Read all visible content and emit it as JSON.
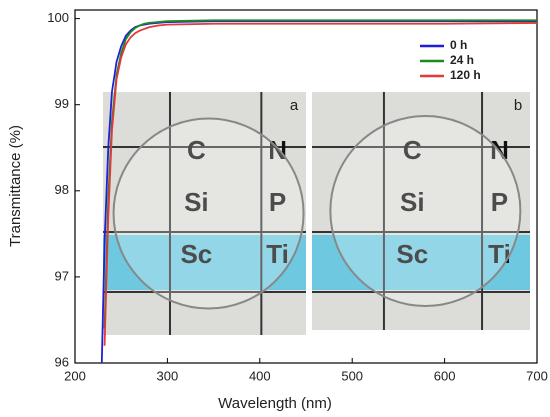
{
  "chart_data": {
    "type": "line",
    "xlabel": "Wavelength (nm)",
    "ylabel": "Transmittance (%)",
    "x": [
      229,
      232,
      236,
      240,
      245,
      250,
      255,
      260,
      265,
      270,
      275,
      280,
      290,
      300,
      350,
      400,
      500,
      600,
      700
    ],
    "series": [
      {
        "name": "0 h",
        "color": "#1f1fd6",
        "values": [
          96,
          97.4,
          98.5,
          99.15,
          99.5,
          99.68,
          99.8,
          99.86,
          99.9,
          99.92,
          99.93,
          99.94,
          99.95,
          99.96,
          99.97,
          99.97,
          99.97,
          99.97,
          99.97
        ]
      },
      {
        "name": "24 h",
        "color": "#1e8a1e",
        "values": [
          null,
          96.4,
          97.9,
          98.8,
          99.35,
          99.6,
          99.76,
          99.84,
          99.89,
          99.92,
          99.94,
          99.95,
          99.96,
          99.97,
          99.98,
          99.98,
          99.98,
          99.98,
          99.98
        ]
      },
      {
        "name": "120 h",
        "color": "#e03a3a",
        "values": [
          null,
          96.2,
          97.7,
          98.7,
          99.3,
          99.55,
          99.7,
          99.78,
          99.83,
          99.86,
          99.88,
          99.9,
          99.92,
          99.93,
          99.94,
          99.94,
          99.94,
          99.94,
          99.95
        ]
      }
    ],
    "xlim": [
      200,
      700
    ],
    "xticks": [
      200,
      300,
      400,
      500,
      600,
      700
    ],
    "ylim": [
      96,
      100.1
    ],
    "yticks": [
      96,
      97,
      98,
      99,
      100
    ],
    "legend": "upper right",
    "insets": [
      "a",
      "b"
    ],
    "inset_elements": [
      "C",
      "N",
      "Si",
      "P",
      "Sc",
      "Ti"
    ]
  }
}
